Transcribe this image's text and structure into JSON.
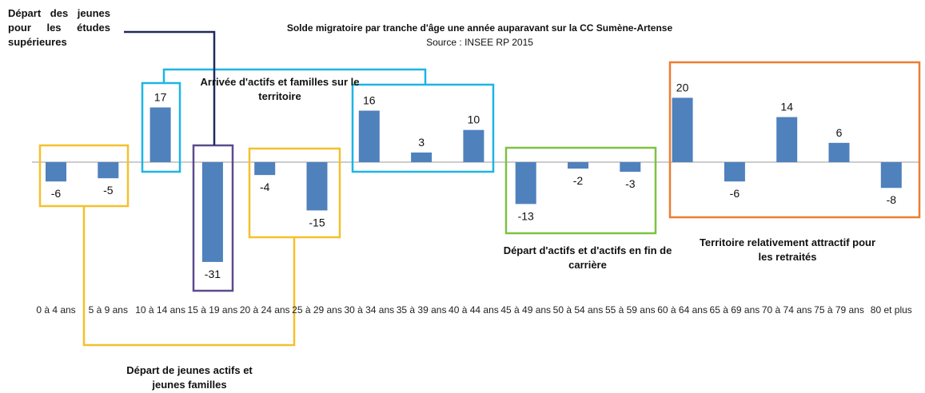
{
  "chart_data": {
    "type": "bar",
    "title": "Solde migratoire par tranche d'âge une année auparavant sur la CC Sumène-Artense",
    "subtitle": "Source  : INSEE RP 2015",
    "categories": [
      "0 à 4 ans",
      "5 à 9 ans",
      "10 à 14 ans",
      "15 à 19 ans",
      "20 à 24 ans",
      "25 à 29 ans",
      "30 à 34 ans",
      "35 à 39 ans",
      "40 à 44 ans",
      "45 à 49 ans",
      "50 à 54 ans",
      "55 à 59 ans",
      "60 à 64 ans",
      "65 à 69 ans",
      "70 à 74 ans",
      "75 à 79 ans",
      "80 et plus"
    ],
    "values": [
      -6,
      -5,
      17,
      -31,
      -4,
      -15,
      16,
      3,
      10,
      -13,
      -2,
      -3,
      20,
      -6,
      14,
      6,
      -8
    ],
    "color": "#4f81bd",
    "annotations": [
      "Départ des jeunes pour les études supérieures",
      "Arrivée d'actifs et familles sur le territoire",
      "Départ d'actifs et  d'actifs en fin de carrière",
      "Territoire relativement attractif pour les retraités",
      "Départ de jeunes actifs et jeunes familles"
    ]
  }
}
